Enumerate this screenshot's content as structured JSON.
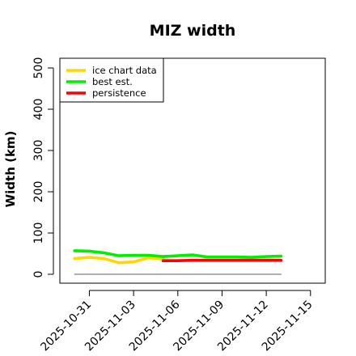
{
  "title": "MIZ width",
  "chart_data": {
    "type": "line",
    "title": "MIZ width",
    "xlabel": "",
    "ylabel": "Width (km)",
    "xlim": [
      "2025-10-29",
      "2025-11-16"
    ],
    "ylim": [
      0,
      500
    ],
    "yticks": [
      0,
      100,
      200,
      300,
      400,
      500
    ],
    "xticks": [
      "2025-10-31",
      "2025-11-03",
      "2025-11-06",
      "2025-11-09",
      "2025-11-12",
      "2025-11-15"
    ],
    "legend_position": "top-left",
    "grid": false,
    "series": [
      {
        "name": "ice chart data",
        "color": "#ffd700",
        "x": [
          "2025-10-30",
          "2025-10-31",
          "2025-11-01",
          "2025-11-02",
          "2025-11-03",
          "2025-11-04",
          "2025-11-05"
        ],
        "y": [
          38,
          41,
          38,
          28,
          30,
          40,
          37
        ]
      },
      {
        "name": "best est.",
        "color": "#00ee00",
        "x": [
          "2025-10-30",
          "2025-10-31",
          "2025-11-01",
          "2025-11-02",
          "2025-11-03",
          "2025-11-04",
          "2025-11-05",
          "2025-11-06",
          "2025-11-07",
          "2025-11-08",
          "2025-11-09",
          "2025-11-10",
          "2025-11-11",
          "2025-11-12",
          "2025-11-13"
        ],
        "y": [
          57,
          56,
          52,
          45,
          46,
          46,
          43,
          45,
          47,
          42,
          42,
          42,
          41,
          43,
          44
        ]
      },
      {
        "name": "persistence",
        "color": "#ff0000",
        "x": [
          "2025-11-05",
          "2025-11-06",
          "2025-11-07",
          "2025-11-08",
          "2025-11-09",
          "2025-11-10",
          "2025-11-11",
          "2025-11-12",
          "2025-11-13"
        ],
        "y": [
          33,
          33,
          34,
          34,
          34,
          34,
          34,
          34,
          34
        ]
      },
      {
        "name": "",
        "color": "#808080",
        "x": [
          "2025-10-30",
          "2025-11-13"
        ],
        "y": [
          0,
          0
        ]
      }
    ]
  }
}
